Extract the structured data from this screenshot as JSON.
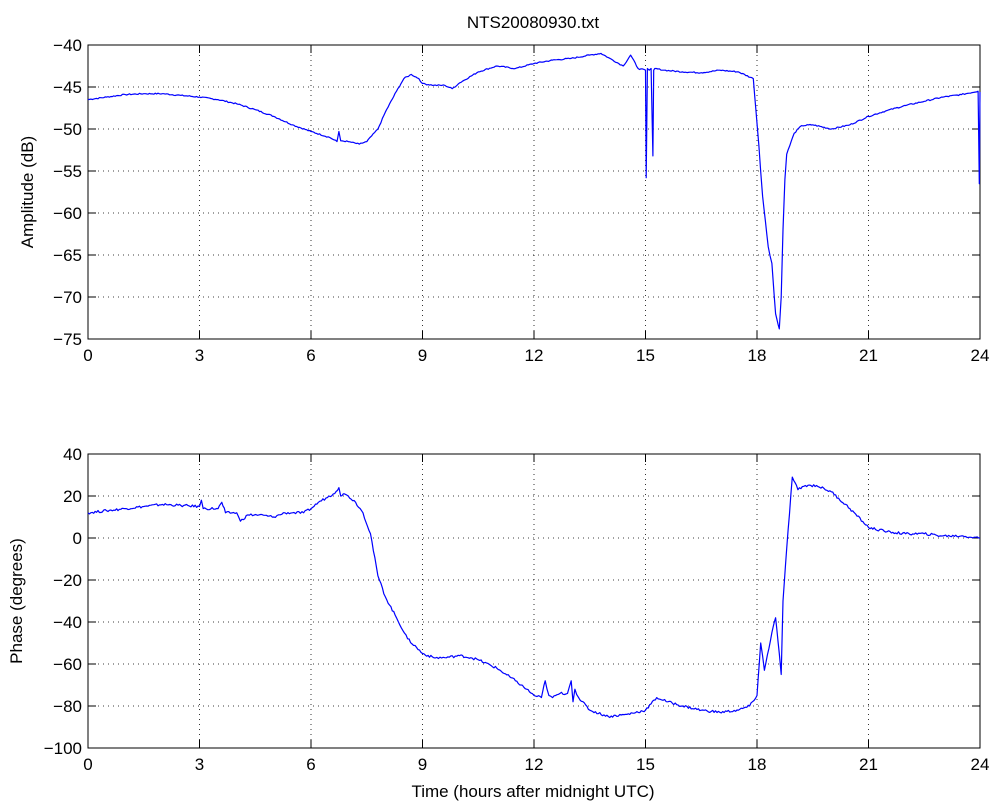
{
  "chart_data": [
    {
      "type": "line",
      "title": "NTS20080930.txt",
      "xlabel": "",
      "ylabel": "Amplitude (dB)",
      "xlim": [
        0,
        24
      ],
      "ylim": [
        -75,
        -40
      ],
      "xticks": [
        "0",
        "3",
        "6",
        "9",
        "12",
        "15",
        "18",
        "21",
        "24"
      ],
      "yticks": [
        "-40",
        "-45",
        "-50",
        "-55",
        "-60",
        "-65",
        "-70",
        "-75"
      ],
      "grid": true,
      "color": "#0000ff",
      "series": [
        {
          "x": [
            0,
            0.5,
            1,
            1.5,
            2,
            2.5,
            3,
            3.5,
            4,
            4.5,
            5,
            5.5,
            6,
            6.5,
            6.7,
            6.75,
            6.8,
            7.0,
            7.3,
            7.5,
            7.8,
            8.0,
            8.3,
            8.5,
            8.7,
            8.9,
            9.0,
            9.3,
            9.6,
            9.8,
            10.0,
            10.5,
            11.0,
            11.5,
            12.0,
            12.5,
            13.0,
            13.5,
            13.8,
            14.0,
            14.4,
            14.6,
            14.8,
            15.0,
            15.02,
            15.05,
            15.1,
            15.15,
            15.2,
            15.22,
            15.25,
            15.5,
            16.0,
            16.5,
            17.0,
            17.5,
            17.9,
            18.05,
            18.15,
            18.3,
            18.4,
            18.5,
            18.6,
            18.65,
            18.7,
            18.75,
            18.8,
            19.0,
            19.2,
            19.5,
            20.0,
            20.5,
            21.0,
            21.5,
            22.0,
            22.5,
            23.0,
            23.5,
            23.95,
            23.98,
            24.0
          ],
          "y": [
            -46.5,
            -46.2,
            -45.9,
            -45.8,
            -45.8,
            -46.0,
            -46.2,
            -46.5,
            -47.0,
            -47.7,
            -48.5,
            -49.5,
            -50.3,
            -51.0,
            -51.5,
            -50.3,
            -51.4,
            -51.5,
            -51.8,
            -51.5,
            -50.0,
            -48.0,
            -45.5,
            -44.0,
            -43.5,
            -44.0,
            -44.6,
            -44.8,
            -44.8,
            -45.2,
            -44.5,
            -43.2,
            -42.5,
            -42.8,
            -42.2,
            -41.8,
            -41.6,
            -41.2,
            -41.0,
            -41.5,
            -42.5,
            -41.2,
            -42.8,
            -43.0,
            -55.8,
            -42.8,
            -43.0,
            -42.8,
            -53.2,
            -43.0,
            -42.8,
            -43.0,
            -43.2,
            -43.3,
            -43.0,
            -43.2,
            -44.0,
            -52.0,
            -58.0,
            -64.0,
            -66.0,
            -72.0,
            -73.8,
            -70.0,
            -62.0,
            -56.0,
            -53.0,
            -50.5,
            -49.6,
            -49.5,
            -50.0,
            -49.5,
            -48.5,
            -47.8,
            -47.2,
            -46.7,
            -46.2,
            -45.9,
            -45.5,
            -56.5,
            -45.6
          ]
        }
      ]
    },
    {
      "type": "line",
      "title": "",
      "xlabel": "Time (hours after midnight UTC)",
      "ylabel": "Phase (degrees)",
      "xlim": [
        0,
        24
      ],
      "ylim": [
        -100,
        40
      ],
      "xticks": [
        "0",
        "3",
        "6",
        "9",
        "12",
        "15",
        "18",
        "21",
        "24"
      ],
      "yticks": [
        "40",
        "20",
        "0",
        "-20",
        "-40",
        "-60",
        "-80",
        "-100"
      ],
      "grid": true,
      "color": "#0000ff",
      "series": [
        {
          "x": [
            0,
            0.5,
            1,
            1.5,
            2,
            2.5,
            3,
            3.05,
            3.1,
            3.5,
            3.6,
            3.7,
            4.0,
            4.1,
            4.3,
            4.6,
            5.0,
            5.3,
            5.5,
            5.8,
            6.0,
            6.2,
            6.4,
            6.6,
            6.75,
            6.8,
            6.9,
            7.0,
            7.2,
            7.4,
            7.6,
            7.8,
            8.0,
            8.3,
            8.6,
            9.0,
            9.3,
            9.6,
            10.0,
            10.3,
            10.5,
            11.0,
            11.5,
            11.8,
            12.0,
            12.2,
            12.3,
            12.4,
            12.5,
            12.7,
            12.9,
            13.0,
            13.05,
            13.1,
            13.2,
            13.5,
            14.0,
            14.5,
            15.0,
            15.3,
            15.6,
            16.0,
            16.5,
            17.0,
            17.5,
            17.8,
            18.0,
            18.1,
            18.2,
            18.4,
            18.5,
            18.6,
            18.65,
            18.7,
            18.8,
            18.95,
            19.1,
            19.3,
            19.6,
            20.0,
            20.5,
            21.0,
            21.5,
            22.0,
            22.5,
            23.0,
            23.5,
            24.0
          ],
          "y": [
            12,
            13,
            14,
            15,
            16,
            15.5,
            15,
            18,
            14,
            14,
            17,
            12,
            12,
            8,
            11,
            11,
            10,
            12,
            12,
            12,
            14,
            17,
            19,
            21,
            24,
            20,
            21,
            20,
            17,
            12,
            2,
            -18,
            -28,
            -38,
            -48,
            -55,
            -57,
            -57,
            -56,
            -57,
            -58,
            -62,
            -68,
            -72,
            -75,
            -76,
            -68,
            -75,
            -76,
            -74,
            -74,
            -68,
            -78,
            -72,
            -76,
            -82,
            -85,
            -84,
            -82,
            -76,
            -78,
            -80,
            -82,
            -83,
            -82,
            -80,
            -75,
            -50,
            -63,
            -45,
            -38,
            -55,
            -65,
            -30,
            -5,
            29,
            23,
            25,
            25,
            22,
            14,
            5,
            3,
            2,
            2,
            1,
            1,
            0
          ]
        }
      ]
    }
  ]
}
